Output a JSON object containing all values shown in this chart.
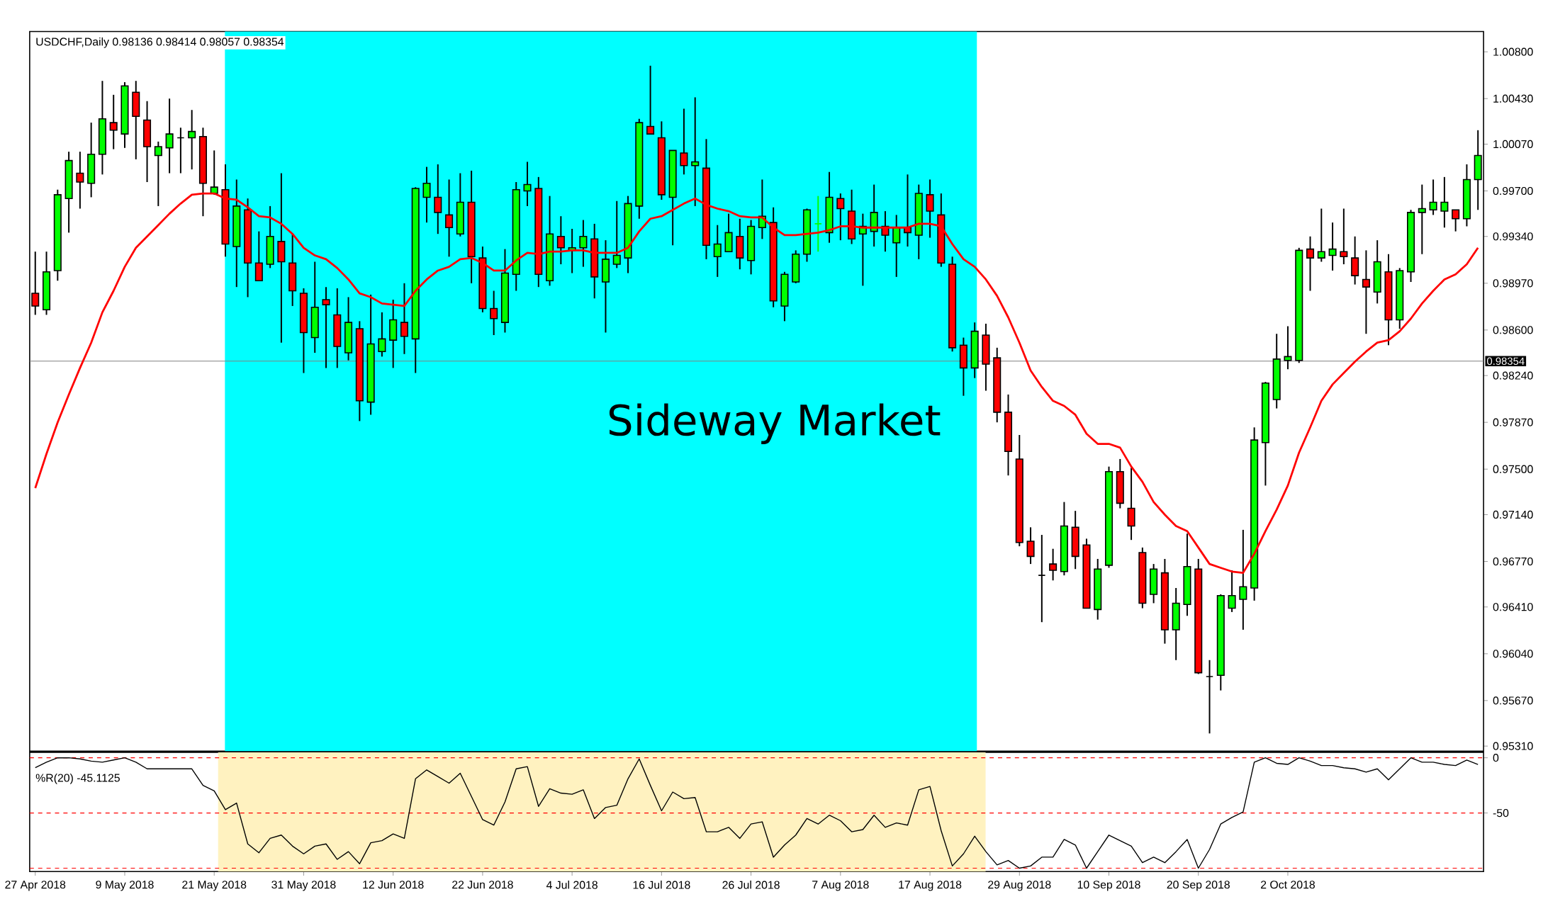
{
  "chart_data": [
    {
      "type": "candlestick",
      "title": "USDCHF,Daily  0.98136 0.98414 0.98057 0.98354",
      "categories": [
        null,
        null,
        null,
        null,
        null,
        null,
        null,
        null,
        null,
        null,
        null,
        null,
        null,
        null,
        null,
        null,
        null,
        null,
        null,
        null,
        null,
        null,
        null,
        null,
        null,
        null,
        null,
        null,
        null,
        null,
        null,
        null,
        null,
        null,
        null,
        null,
        null,
        null,
        null,
        null,
        null,
        null,
        null,
        null,
        null,
        null,
        null,
        null,
        null,
        null,
        null,
        null,
        null,
        null,
        null,
        null,
        null,
        null,
        null,
        null,
        null,
        null,
        null,
        null,
        null,
        null,
        null,
        null,
        null,
        null,
        null,
        null,
        null,
        null,
        null,
        null,
        null,
        null,
        null,
        null,
        null,
        null,
        null,
        null,
        null,
        null,
        null,
        null,
        null,
        null,
        null,
        null,
        null,
        null,
        null,
        null,
        null,
        null,
        null,
        null,
        null,
        null,
        null,
        null,
        null,
        null,
        null,
        null,
        null,
        null,
        null,
        null,
        null,
        null,
        null,
        null,
        null,
        null,
        null,
        null,
        null,
        null,
        null,
        null,
        null,
        null,
        null,
        null,
        null,
        null
      ],
      "ohlc": [
        [
          0.9889,
          0.9922,
          0.9872,
          0.9879
        ],
        [
          0.9876,
          0.9922,
          0.9872,
          0.9906
        ],
        [
          0.9907,
          0.9971,
          0.9899,
          0.9967
        ],
        [
          0.9964,
          1.0001,
          0.9937,
          0.9994
        ],
        [
          0.9984,
          1.0001,
          0.9956,
          0.9977
        ],
        [
          0.9976,
          1.0024,
          0.9965,
          0.9999
        ],
        [
          0.9999,
          1.0057,
          0.9983,
          1.0027
        ],
        [
          1.0024,
          1.0046,
          1.0003,
          1.0018
        ],
        [
          1.0015,
          1.0056,
          1.0004,
          1.0053
        ],
        [
          1.0048,
          1.0057,
          0.9995,
          1.0029
        ],
        [
          1.0026,
          1.0041,
          0.9977,
          1.0005
        ],
        [
          0.9998,
          1.0009,
          0.9958,
          1.0005
        ],
        [
          1.0004,
          1.0043,
          0.9984,
          1.0015
        ],
        [
          1.0012,
          1.002,
          0.9984,
          1.0012
        ],
        [
          1.0012,
          1.0034,
          0.9987,
          1.0017
        ],
        [
          1.0013,
          1.002,
          0.995,
          0.9976
        ],
        [
          0.9968,
          1.0002,
          0.9967,
          0.9973
        ],
        [
          0.9971,
          0.9991,
          0.9918,
          0.9928
        ],
        [
          0.9926,
          0.9979,
          0.9894,
          0.9958
        ],
        [
          0.9955,
          0.9964,
          0.9886,
          0.9913
        ],
        [
          0.9913,
          0.9938,
          0.9899,
          0.9899
        ],
        [
          0.9912,
          0.9958,
          0.9909,
          0.9934
        ],
        [
          0.993,
          0.9984,
          0.985,
          0.9914
        ],
        [
          0.9913,
          0.9936,
          0.9879,
          0.9891
        ],
        [
          0.9889,
          0.9893,
          0.9826,
          0.9858
        ],
        [
          0.9854,
          0.9914,
          0.9842,
          0.9878
        ],
        [
          0.9884,
          0.9894,
          0.983,
          0.988
        ],
        [
          0.9872,
          0.9893,
          0.983,
          0.9847
        ],
        [
          0.9842,
          0.9886,
          0.9836,
          0.9866
        ],
        [
          0.9861,
          0.9867,
          0.9788,
          0.9804
        ],
        [
          0.9803,
          0.9888,
          0.9793,
          0.9849
        ],
        [
          0.9843,
          0.9874,
          0.9839,
          0.9853
        ],
        [
          0.9852,
          0.9884,
          0.983,
          0.9868
        ],
        [
          0.9866,
          0.9897,
          0.9841,
          0.9855
        ],
        [
          0.9853,
          0.9973,
          0.9826,
          0.9972
        ],
        [
          0.9965,
          0.9989,
          0.9945,
          0.9976
        ],
        [
          0.9965,
          0.9991,
          0.9936,
          0.9953
        ],
        [
          0.9951,
          0.9979,
          0.9918,
          0.9941
        ],
        [
          0.9936,
          0.9984,
          0.9934,
          0.9961
        ],
        [
          0.9961,
          0.9986,
          0.9897,
          0.9918
        ],
        [
          0.9917,
          0.9926,
          0.9874,
          0.9877
        ],
        [
          0.9877,
          0.9891,
          0.9856,
          0.9869
        ],
        [
          0.9866,
          0.9924,
          0.9858,
          0.9905
        ],
        [
          0.9904,
          0.9977,
          0.9891,
          0.9971
        ],
        [
          0.997,
          0.9993,
          0.9958,
          0.9975
        ],
        [
          0.9972,
          0.9981,
          0.9894,
          0.9904
        ],
        [
          0.9899,
          0.9966,
          0.9895,
          0.9936
        ],
        [
          0.9934,
          0.995,
          0.9912,
          0.9925
        ],
        [
          0.9923,
          0.994,
          0.9905,
          0.9925
        ],
        [
          0.9925,
          0.9947,
          0.991,
          0.9934
        ],
        [
          0.9932,
          0.9944,
          0.9885,
          0.9902
        ],
        [
          0.9898,
          0.9931,
          0.9858,
          0.9916
        ],
        [
          0.9912,
          0.9962,
          0.9909,
          0.9919
        ],
        [
          0.9917,
          0.9966,
          0.9905,
          0.996
        ],
        [
          0.9958,
          1.0027,
          0.9948,
          1.0024
        ],
        [
          1.0021,
          1.0069,
          1.0015,
          1.0015
        ],
        [
          1.0012,
          1.0025,
          0.9963,
          0.9967
        ],
        [
          0.9965,
          1.0002,
          0.9927,
          1.0002
        ],
        [
          1.0,
          1.0035,
          0.9983,
          0.999
        ],
        [
          0.999,
          1.0044,
          0.9958,
          0.9993
        ],
        [
          0.9988,
          1.0011,
          0.9916,
          0.9927
        ],
        [
          0.9918,
          0.9943,
          0.9902,
          0.9928
        ],
        [
          0.9922,
          0.9952,
          0.9922,
          0.9937
        ],
        [
          0.9934,
          0.9948,
          0.9908,
          0.9917
        ],
        [
          0.9915,
          0.9947,
          0.9904,
          0.9942
        ],
        [
          0.9941,
          0.9979,
          0.9932,
          0.995
        ],
        [
          0.9945,
          0.9957,
          0.9878,
          0.9883
        ],
        [
          0.9879,
          0.9906,
          0.9867,
          0.9904
        ],
        [
          0.9898,
          0.9923,
          0.9897,
          0.992
        ],
        [
          0.992,
          0.9956,
          0.9914,
          0.9955
        ],
        [
          0.9944,
          0.9966,
          0.9922,
          0.9944
        ],
        [
          0.9937,
          0.9985,
          0.9929,
          0.9965
        ],
        [
          0.9964,
          0.9968,
          0.9931,
          0.9956
        ],
        [
          0.9954,
          0.9971,
          0.9928,
          0.9932
        ],
        [
          0.9936,
          0.9952,
          0.9895,
          0.9942
        ],
        [
          0.9938,
          0.9975,
          0.9926,
          0.9953
        ],
        [
          0.9942,
          0.9954,
          0.9922,
          0.9935
        ],
        [
          0.9929,
          0.9951,
          0.9902,
          0.9941
        ],
        [
          0.9941,
          0.9983,
          0.9926,
          0.9937
        ],
        [
          0.9935,
          0.9975,
          0.9916,
          0.9968
        ],
        [
          0.9967,
          0.9979,
          0.9933,
          0.9954
        ],
        [
          0.9951,
          0.9968,
          0.991,
          0.9913
        ],
        [
          0.9912,
          0.9918,
          0.9843,
          0.9846
        ],
        [
          0.9848,
          0.9854,
          0.9808,
          0.983
        ],
        [
          0.983,
          0.9866,
          0.9822,
          0.9859
        ],
        [
          0.9856,
          0.9865,
          0.9812,
          0.9833
        ],
        [
          0.9838,
          0.9846,
          0.9787,
          0.9795
        ],
        [
          0.9795,
          0.9809,
          0.9745,
          0.9764
        ],
        [
          0.9758,
          0.9777,
          0.9689,
          0.9692
        ],
        [
          0.9693,
          0.9704,
          0.9675,
          0.9681
        ],
        [
          0.9666,
          0.9698,
          0.9629,
          0.9666
        ],
        [
          0.9675,
          0.9687,
          0.9662,
          0.967
        ],
        [
          0.9669,
          0.9724,
          0.9666,
          0.9705
        ],
        [
          0.9704,
          0.9717,
          0.9671,
          0.9681
        ],
        [
          0.969,
          0.9695,
          0.964,
          0.964
        ],
        [
          0.9639,
          0.9679,
          0.9631,
          0.9671
        ],
        [
          0.9674,
          0.9752,
          0.9672,
          0.9748
        ],
        [
          0.9748,
          0.9758,
          0.9719,
          0.9723
        ],
        [
          0.9719,
          0.9751,
          0.9694,
          0.9705
        ],
        [
          0.9684,
          0.9688,
          0.964,
          0.9644
        ],
        [
          0.9651,
          0.9675,
          0.9644,
          0.9671
        ],
        [
          0.9668,
          0.9679,
          0.9612,
          0.9623
        ],
        [
          0.9623,
          0.9656,
          0.9599,
          0.9644
        ],
        [
          0.9643,
          0.9699,
          0.9634,
          0.9673
        ],
        [
          0.9671,
          0.9679,
          0.9588,
          0.9589
        ],
        [
          0.9586,
          0.9599,
          0.9541,
          0.9586
        ],
        [
          0.9587,
          0.9651,
          0.9575,
          0.965
        ],
        [
          0.964,
          0.967,
          0.9637,
          0.965
        ],
        [
          0.9647,
          0.9702,
          0.9623,
          0.9657
        ],
        [
          0.9656,
          0.9783,
          0.9646,
          0.9773
        ],
        [
          0.9771,
          0.9819,
          0.9737,
          0.9818
        ],
        [
          0.9805,
          0.9857,
          0.9798,
          0.9837
        ],
        [
          0.9836,
          0.9863,
          0.9829,
          0.9839
        ],
        [
          0.9836,
          0.9925,
          0.9834,
          0.9923
        ],
        [
          0.9924,
          0.9934,
          0.9891,
          0.9917
        ],
        [
          0.9917,
          0.9956,
          0.9914,
          0.9922
        ],
        [
          0.9919,
          0.9945,
          0.9907,
          0.9924
        ],
        [
          0.9922,
          0.9956,
          0.9912,
          0.9918
        ],
        [
          0.9917,
          0.9934,
          0.9896,
          0.9903
        ],
        [
          0.99,
          0.9923,
          0.9857,
          0.9894
        ],
        [
          0.989,
          0.9931,
          0.9881,
          0.9914
        ],
        [
          0.9906,
          0.992,
          0.9848,
          0.9868
        ],
        [
          0.9868,
          0.9909,
          0.9861,
          0.9907
        ],
        [
          0.9906,
          0.9955,
          0.9898,
          0.9953
        ],
        [
          0.9953,
          0.9975,
          0.992,
          0.9956
        ],
        [
          0.9955,
          0.9979,
          0.9951,
          0.9961
        ],
        [
          0.9954,
          0.9981,
          0.9941,
          0.9961
        ],
        [
          0.9955,
          0.9955,
          0.9938,
          0.9948
        ],
        [
          0.9948,
          0.9991,
          0.9942,
          0.9979
        ],
        [
          0.9979,
          1.0018,
          0.9955,
          0.9998
        ]
      ],
      "colors": [
        "#ff0000",
        "#00ff00",
        "#00ff00",
        "#00ff00",
        "#ff0000",
        "#00ff00",
        "#00ff00",
        "#ff0000",
        "#00ff00",
        "#ff0000",
        "#ff0000",
        "#00ff00",
        "#00ff00",
        "#000000",
        "#00ff00",
        "#ff0000",
        "#00ff00",
        "#ff0000",
        "#00ff00",
        "#ff0000",
        "#ff0000",
        "#00ff00",
        "#ff0000",
        "#ff0000",
        "#ff0000",
        "#00ff00",
        "#ff0000",
        "#ff0000",
        "#00ff00",
        "#ff0000",
        "#00ff00",
        "#00ff00",
        "#00ff00",
        "#ff0000",
        "#00ff00",
        "#00ff00",
        "#ff0000",
        "#ff0000",
        "#00ff00",
        "#ff0000",
        "#ff0000",
        "#ff0000",
        "#00ff00",
        "#00ff00",
        "#00ff00",
        "#ff0000",
        "#00ff00",
        "#ff0000",
        "#00ff00",
        "#00ff00",
        "#ff0000",
        "#00ff00",
        "#00ff00",
        "#00ff00",
        "#00ff00",
        "#ff0000",
        "#ff0000",
        "#00ff00",
        "#ff0000",
        "#00ff00",
        "#ff0000",
        "#00ff00",
        "#00ff00",
        "#ff0000",
        "#00ff00",
        "#00ff00",
        "#ff0000",
        "#00ff00",
        "#00ff00",
        "#00ff00",
        "#00ff00",
        "#00ff00",
        "#ff0000",
        "#ff0000",
        "#00ff00",
        "#00ff00",
        "#ff0000",
        "#00ff00",
        "#ff0000",
        "#00ff00",
        "#ff0000",
        "#ff0000",
        "#ff0000",
        "#ff0000",
        "#00ff00",
        "#ff0000",
        "#ff0000",
        "#ff0000",
        "#ff0000",
        "#ff0000",
        "#000000",
        "#ff0000",
        "#00ff00",
        "#ff0000",
        "#ff0000",
        "#00ff00",
        "#00ff00",
        "#ff0000",
        "#ff0000",
        "#ff0000",
        "#00ff00",
        "#ff0000",
        "#00ff00",
        "#00ff00",
        "#ff0000",
        "#000000",
        "#00ff00",
        "#00ff00",
        "#00ff00",
        "#00ff00",
        "#00ff00",
        "#00ff00",
        "#00ff00",
        "#00ff00",
        "#ff0000",
        "#00ff00",
        "#00ff00",
        "#ff0000",
        "#ff0000",
        "#ff0000",
        "#00ff00",
        "#ff0000",
        "#00ff00",
        "#00ff00",
        "#00ff00",
        "#00ff00",
        "#00ff00",
        "#ff0000",
        "#00ff00",
        "#00ff00"
      ],
      "series": [
        {
          "type": "line",
          "color": "#ff0000",
          "values": [
            0.9735,
            0.9762,
            0.9787,
            0.9809,
            0.983,
            0.985,
            0.9874,
            0.9891,
            0.991,
            0.9925,
            0.9934,
            0.9943,
            0.9952,
            0.996,
            0.9967,
            0.9968,
            0.9968,
            0.9964,
            0.9963,
            0.9957,
            0.995,
            0.9949,
            0.9944,
            0.9936,
            0.9925,
            0.9919,
            0.9916,
            0.9909,
            0.99,
            0.9889,
            0.9886,
            0.9881,
            0.988,
            0.9879,
            0.9891,
            0.99,
            0.9907,
            0.991,
            0.9916,
            0.9917,
            0.9913,
            0.9907,
            0.9907,
            0.9915,
            0.9921,
            0.992,
            0.9922,
            0.9922,
            0.9923,
            0.9923,
            0.9921,
            0.9921,
            0.9921,
            0.9925,
            0.9938,
            0.9948,
            0.995,
            0.9955,
            0.996,
            0.9964,
            0.9959,
            0.9956,
            0.9954,
            0.995,
            0.9949,
            0.9949,
            0.9941,
            0.9935,
            0.9935,
            0.9936,
            0.9937,
            0.9939,
            0.9942,
            0.9942,
            0.9941,
            0.9941,
            0.9941,
            0.9941,
            0.9941,
            0.9944,
            0.9944,
            0.9942,
            0.9928,
            0.9916,
            0.991,
            0.99,
            0.9887,
            0.987,
            0.985,
            0.9828,
            0.9815,
            0.9804,
            0.98,
            0.9793,
            0.9778,
            0.977,
            0.977,
            0.9767,
            0.9752,
            0.974,
            0.9724,
            0.9714,
            0.9705,
            0.9701,
            0.9688,
            0.9675,
            0.9672,
            0.9669,
            0.9668,
            0.9683,
            0.9701,
            0.9718,
            0.9737,
            0.9763,
            0.9783,
            0.9804,
            0.9817,
            0.9826,
            0.9835,
            0.9843,
            0.985,
            0.9852,
            0.9859,
            0.9869,
            0.9881,
            0.9891,
            0.99,
            0.9904,
            0.9912,
            0.9925
          ]
        }
      ],
      "ylim": [
        0.9527,
        1.0096
      ],
      "yticks": [
        {
          "value": 1.008,
          "label": "1.00800"
        },
        {
          "value": 1.0043,
          "label": "1.00430"
        },
        {
          "value": 1.0007,
          "label": "1.00070"
        },
        {
          "value": 0.997,
          "label": "0.99700"
        },
        {
          "value": 0.9934,
          "label": "0.99340"
        },
        {
          "value": 0.9897,
          "label": "0.98970"
        },
        {
          "value": 0.986,
          "label": "0.98600"
        },
        {
          "value": 0.9824,
          "label": "0.98240"
        },
        {
          "value": 0.9787,
          "label": "0.97870"
        },
        {
          "value": 0.975,
          "label": "0.97500"
        },
        {
          "value": 0.9714,
          "label": "0.97140"
        },
        {
          "value": 0.9677,
          "label": "0.96770"
        },
        {
          "value": 0.9641,
          "label": "0.96410"
        },
        {
          "value": 0.9604,
          "label": "0.96040"
        },
        {
          "value": 0.9567,
          "label": "0.95670"
        },
        {
          "value": 0.9531,
          "label": "0.95310"
        }
      ],
      "ref_lines": [
        {
          "axis": "y",
          "value": 0.98354,
          "label": "0.98354",
          "color": "#808080"
        }
      ],
      "annotations": [
        "Sideway Market"
      ],
      "tick_labels": "y"
    },
    {
      "type": "line",
      "title": "%R(20) -45.1125",
      "categories": [
        "27 Apr 2018",
        null,
        null,
        null,
        null,
        null,
        null,
        null,
        "9 May 2018",
        null,
        null,
        null,
        null,
        null,
        null,
        null,
        "21 May 2018",
        null,
        null,
        null,
        null,
        null,
        null,
        null,
        "31 May 2018",
        null,
        null,
        null,
        null,
        null,
        null,
        null,
        "12 Jun 2018",
        null,
        null,
        null,
        null,
        null,
        null,
        null,
        "22 Jun 2018",
        null,
        null,
        null,
        null,
        null,
        null,
        null,
        "4 Jul 2018",
        null,
        null,
        null,
        null,
        null,
        null,
        null,
        "16 Jul 2018",
        null,
        null,
        null,
        null,
        null,
        null,
        null,
        "26 Jul 2018",
        null,
        null,
        null,
        null,
        null,
        null,
        null,
        "7 Aug 2018",
        null,
        null,
        null,
        null,
        null,
        null,
        null,
        "17 Aug 2018",
        null,
        null,
        null,
        null,
        null,
        null,
        null,
        "29 Aug 2018",
        null,
        null,
        null,
        null,
        null,
        null,
        null,
        "10 Sep 2018",
        null,
        null,
        null,
        null,
        null,
        null,
        null,
        "20 Sep 2018",
        null,
        null,
        null,
        null,
        null,
        null,
        null,
        "2 Oct 2018",
        null,
        null,
        null,
        null,
        null,
        null,
        null,
        null,
        null,
        null,
        null,
        null,
        null,
        null,
        null,
        null,
        null
      ],
      "color": "#000000",
      "values": [
        -9,
        -4,
        0,
        0,
        -1,
        -3,
        -4,
        -2,
        0,
        -4,
        -10,
        -10,
        -10,
        -10,
        -10,
        -25,
        -30,
        -47,
        -41,
        -78,
        -86,
        -73,
        -70,
        -80,
        -87,
        -80,
        -78,
        -92,
        -85,
        -96,
        -77,
        -75,
        -69,
        -73,
        -19,
        -11,
        -17,
        -23,
        -14,
        -35,
        -56,
        -61,
        -40,
        -10,
        -8,
        -44,
        -28,
        -32,
        -33,
        -29,
        -55,
        -45,
        -43,
        -19,
        -1,
        -25,
        -48,
        -31,
        -37,
        -36,
        -67,
        -67,
        -63,
        -73,
        -60,
        -58,
        -90,
        -79,
        -70,
        -55,
        -60,
        -52,
        -57,
        -67,
        -65,
        -52,
        -63,
        -59,
        -61,
        -29,
        -26,
        -66,
        -98,
        -87,
        -71,
        -85,
        -97,
        -93,
        -100,
        -98,
        -90,
        -90,
        -74,
        -79,
        -100,
        -85,
        -70,
        -75,
        -80,
        -95,
        -90,
        -95,
        -85,
        -74,
        -100,
        -83,
        -60,
        -54,
        -49,
        -4,
        0,
        -5,
        -6,
        0,
        -3,
        -7,
        -7,
        -9,
        -10,
        -13,
        -10,
        -20,
        -10,
        0,
        -4,
        -4,
        -6,
        -7,
        -2,
        -6
      ],
      "ylim": [
        -103,
        5
      ],
      "yticks": [
        0,
        -50
      ],
      "ref_lines": [
        {
          "axis": "y",
          "value": 0,
          "color": "#ff0000",
          "line_style": "dashed"
        },
        {
          "axis": "y",
          "value": -50,
          "color": "#ff0000",
          "line_style": "dashed"
        },
        {
          "axis": "y",
          "value": -100,
          "color": "#ff0000",
          "line_style": "dashed"
        }
      ]
    }
  ]
}
